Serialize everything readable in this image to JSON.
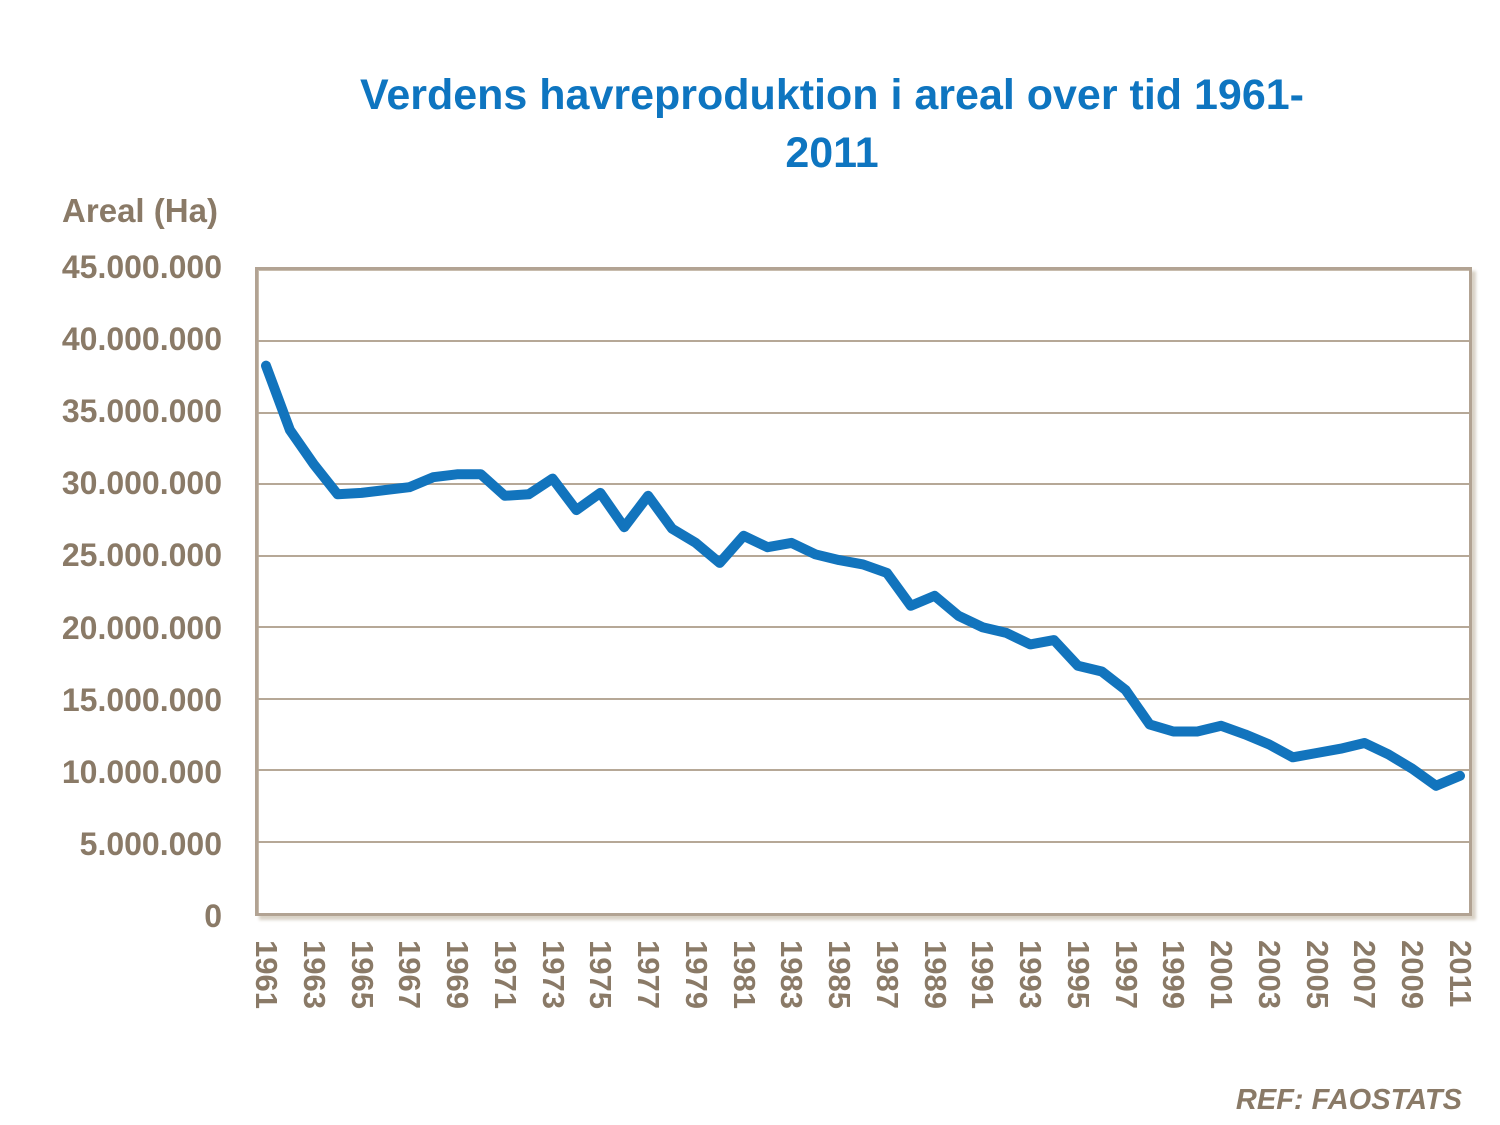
{
  "title": {
    "line1": "Verdens havreproduktion i areal over tid 1961-",
    "line2": "2011"
  },
  "y_axis": {
    "label": "Areal (Ha)",
    "tick_labels": [
      "45.000.000",
      "40.000.000",
      "35.000.000",
      "30.000.000",
      "25.000.000",
      "20.000.000",
      "15.000.000",
      "10.000.000",
      "5.000.000",
      "0"
    ]
  },
  "x_axis": {
    "tick_labels": [
      "1961",
      "1963",
      "1965",
      "1967",
      "1969",
      "1971",
      "1973",
      "1975",
      "1977",
      "1979",
      "1981",
      "1983",
      "1985",
      "1987",
      "1989",
      "1991",
      "1993",
      "1995",
      "1997",
      "1999",
      "2001",
      "2003",
      "2005",
      "2007",
      "2009",
      "2011"
    ]
  },
  "footer": {
    "source": "REF: FAOSTATS"
  },
  "colors": {
    "title_blue": "#0e75c0",
    "line_blue": "#1274bd",
    "axis_text_taupe": "#8a7a67",
    "grid_tan": "#b6a897",
    "plot_border_tan": "#b2a393"
  },
  "chart_data": {
    "type": "line",
    "title": "Verdens havreproduktion i areal over tid 1961-2011",
    "xlabel": "",
    "ylabel": "Areal (Ha)",
    "ylim": [
      0,
      45000000
    ],
    "y_tick_step": 5000000,
    "grid": "horizontal",
    "legend": "none",
    "source": "REF: FAOSTATS",
    "x": [
      1961,
      1962,
      1963,
      1964,
      1965,
      1966,
      1967,
      1968,
      1969,
      1970,
      1971,
      1972,
      1973,
      1974,
      1975,
      1976,
      1977,
      1978,
      1979,
      1980,
      1981,
      1982,
      1983,
      1984,
      1985,
      1986,
      1987,
      1988,
      1989,
      1990,
      1991,
      1992,
      1993,
      1994,
      1995,
      1996,
      1997,
      1998,
      1999,
      2000,
      2001,
      2002,
      2003,
      2004,
      2005,
      2006,
      2007,
      2008,
      2009,
      2010,
      2011
    ],
    "series": [
      {
        "name": "Areal (Ha)",
        "values": [
          38300000,
          33800000,
          31400000,
          29300000,
          29400000,
          29600000,
          29800000,
          30500000,
          30700000,
          30700000,
          29200000,
          29300000,
          30400000,
          28200000,
          29400000,
          27000000,
          29200000,
          26900000,
          25900000,
          24500000,
          26400000,
          25600000,
          25900000,
          25100000,
          24700000,
          24400000,
          23800000,
          21500000,
          22200000,
          20800000,
          20000000,
          19600000,
          18800000,
          19100000,
          17300000,
          16900000,
          15600000,
          13200000,
          12700000,
          12700000,
          13100000,
          12500000,
          11800000,
          10900000,
          11200000,
          11500000,
          11900000,
          11100000,
          10100000,
          8900000,
          9600000
        ]
      }
    ]
  }
}
